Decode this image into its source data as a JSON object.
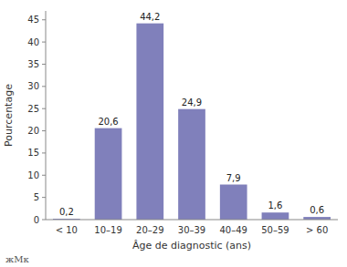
{
  "chart_data": {
    "type": "bar",
    "categories": [
      "< 10",
      "10–19",
      "20–29",
      "30–39",
      "40–49",
      "50–59",
      "> 60"
    ],
    "values": [
      0.2,
      20.6,
      44.2,
      24.9,
      7.9,
      1.6,
      0.6
    ],
    "value_labels": [
      "0,2",
      "20,6",
      "44,2",
      "24,9",
      "7,9",
      "1,6",
      "0,6"
    ],
    "data_labels": true,
    "color": "#8080bb",
    "xlabel": "Âge de diagnostic (ans)",
    "ylabel": "Pourcentage",
    "ylim": [
      0,
      47
    ],
    "yticks": [
      0,
      5,
      10,
      15,
      20,
      25,
      30,
      35,
      40,
      45
    ],
    "grid": false,
    "annotations": [
      "жМк"
    ]
  }
}
